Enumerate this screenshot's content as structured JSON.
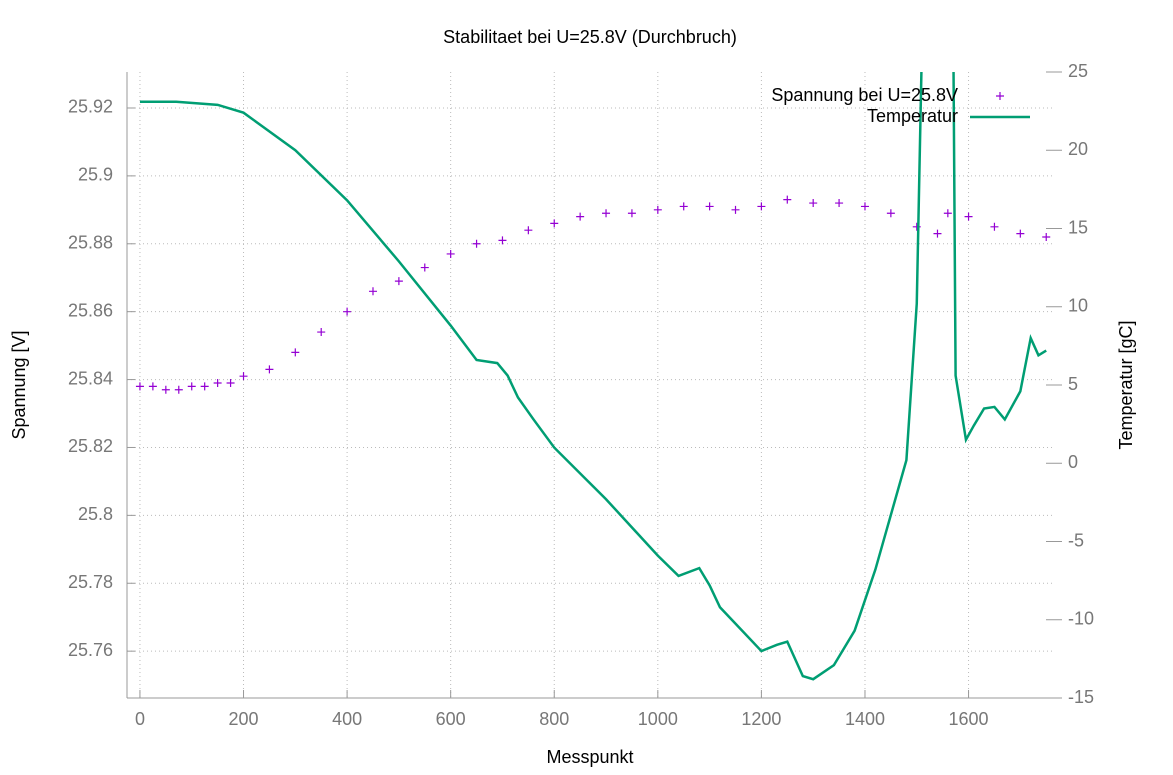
{
  "chart_data": {
    "type": "scatter",
    "title": "Stabilitaet bei U=25.8V (Durchbruch)",
    "x_label": "Messpunkt",
    "y_label": "Spannung [V]",
    "y2_label": "Temperatur [gC]",
    "xlim": [
      -25,
      1765
    ],
    "ylim": [
      25.7462,
      25.9306
    ],
    "y2lim": [
      -15,
      25
    ],
    "xticks": [
      0,
      200,
      400,
      600,
      800,
      1000,
      1200,
      1400,
      1600
    ],
    "yticks": [
      25.76,
      25.78,
      25.8,
      25.82,
      25.84,
      25.86,
      25.88,
      25.9,
      25.92
    ],
    "y2ticks": [
      -15,
      -10,
      -5,
      0,
      5,
      10,
      15,
      20,
      25
    ],
    "grid": true,
    "legend": "upper right",
    "series": [
      {
        "name": "Spannung bei U=25.8V",
        "type": "scatter",
        "color": "#9400d3",
        "x": [
          0,
          25,
          50,
          75,
          100,
          125,
          150,
          175,
          200,
          250,
          300,
          350,
          400,
          450,
          500,
          550,
          600,
          650,
          700,
          750,
          800,
          850,
          900,
          950,
          1000,
          1050,
          1100,
          1150,
          1200,
          1250,
          1300,
          1350,
          1400,
          1450,
          1500,
          1540,
          1560,
          1600,
          1650,
          1700,
          1750
        ],
        "values": [
          25.838,
          25.838,
          25.837,
          25.837,
          25.838,
          25.838,
          25.839,
          25.839,
          25.841,
          25.843,
          25.848,
          25.854,
          25.86,
          25.866,
          25.869,
          25.873,
          25.877,
          25.88,
          25.881,
          25.884,
          25.886,
          25.888,
          25.889,
          25.889,
          25.89,
          25.891,
          25.891,
          25.89,
          25.891,
          25.893,
          25.892,
          25.892,
          25.891,
          25.889,
          25.885,
          25.883,
          25.889,
          25.888,
          25.885,
          25.883,
          25.882
        ]
      },
      {
        "name": "Temperatur",
        "type": "line",
        "axis": "y2",
        "color": "#009e73",
        "x": [
          0,
          70,
          150,
          200,
          300,
          400,
          500,
          600,
          650,
          690,
          710,
          730,
          760,
          800,
          900,
          1000,
          1040,
          1080,
          1100,
          1120,
          1200,
          1230,
          1250,
          1280,
          1300,
          1340,
          1380,
          1420,
          1480,
          1500,
          1512,
          1570,
          1575,
          1595,
          1610,
          1630,
          1650,
          1670,
          1700,
          1720,
          1735,
          1750
        ],
        "values": [
          23.1,
          23.1,
          22.9,
          22.4,
          20.0,
          16.8,
          12.9,
          8.8,
          6.6,
          6.4,
          5.6,
          4.2,
          2.8,
          1.0,
          -2.3,
          -5.9,
          -7.2,
          -6.7,
          -7.8,
          -9.2,
          -12.0,
          -11.6,
          -11.4,
          -13.6,
          -13.8,
          -12.9,
          -10.7,
          -6.8,
          0.2,
          10.2,
          30,
          30,
          5.6,
          1.5,
          2.4,
          3.5,
          3.6,
          2.8,
          4.6,
          8.0,
          6.9,
          7.2
        ]
      }
    ]
  }
}
